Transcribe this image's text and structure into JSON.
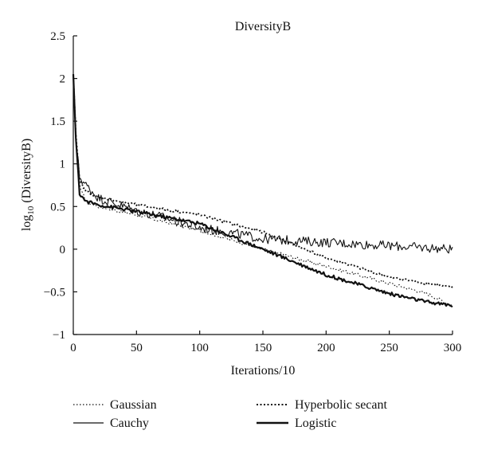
{
  "chart_data": {
    "type": "line",
    "title": "DiversityB",
    "xlabel": "Iterations/10",
    "ylabel_prefix": "log",
    "ylabel_sub": "10",
    "ylabel_suffix": " (DiversityB)",
    "xlim": [
      0,
      300
    ],
    "ylim": [
      -1,
      2.5
    ],
    "x_ticks": [
      0,
      50,
      100,
      150,
      200,
      250,
      300
    ],
    "y_ticks": [
      -1,
      -0.5,
      0,
      0.5,
      1,
      1.5,
      2,
      2.5
    ],
    "x_tick_labels": [
      "0",
      "50",
      "100",
      "150",
      "200",
      "250",
      "300"
    ],
    "y_tick_labels": [
      "−1",
      "−0.5",
      "0",
      "0.5",
      "1",
      "1.5",
      "2",
      "2.5"
    ],
    "grid": false,
    "legend_position": "bottom",
    "series": [
      {
        "name": "Gaussian",
        "style": "dotted",
        "x": [
          0,
          2,
          5,
          10,
          20,
          50,
          100,
          150,
          200,
          250,
          280,
          300
        ],
        "y": [
          2.05,
          1.3,
          0.75,
          0.56,
          0.5,
          0.4,
          0.22,
          0.0,
          -0.2,
          -0.4,
          -0.52,
          -0.66
        ],
        "noise": 0.02
      },
      {
        "name": "Cauchy",
        "style": "thin",
        "x": [
          0,
          2,
          5,
          10,
          20,
          30,
          50,
          70,
          100,
          130,
          150,
          175,
          200,
          250,
          300
        ],
        "y": [
          2.05,
          1.3,
          0.85,
          0.75,
          0.6,
          0.55,
          0.45,
          0.38,
          0.25,
          0.18,
          0.12,
          0.1,
          0.08,
          0.04,
          0.0
        ],
        "noise": 0.055
      },
      {
        "name": "Hyperbolic secant",
        "style": "dotted-bold",
        "x": [
          0,
          2,
          5,
          10,
          20,
          30,
          50,
          100,
          150,
          200,
          250,
          300
        ],
        "y": [
          2.05,
          1.35,
          0.8,
          0.68,
          0.6,
          0.58,
          0.52,
          0.4,
          0.2,
          -0.1,
          -0.33,
          -0.45
        ],
        "noise": 0.015
      },
      {
        "name": "Logistic",
        "style": "bold",
        "x": [
          0,
          2,
          5,
          10,
          20,
          50,
          100,
          150,
          200,
          250,
          280,
          300
        ],
        "y": [
          2.05,
          1.3,
          0.65,
          0.56,
          0.52,
          0.44,
          0.3,
          0.0,
          -0.3,
          -0.52,
          -0.62,
          -0.66
        ],
        "noise": 0.02
      }
    ]
  }
}
